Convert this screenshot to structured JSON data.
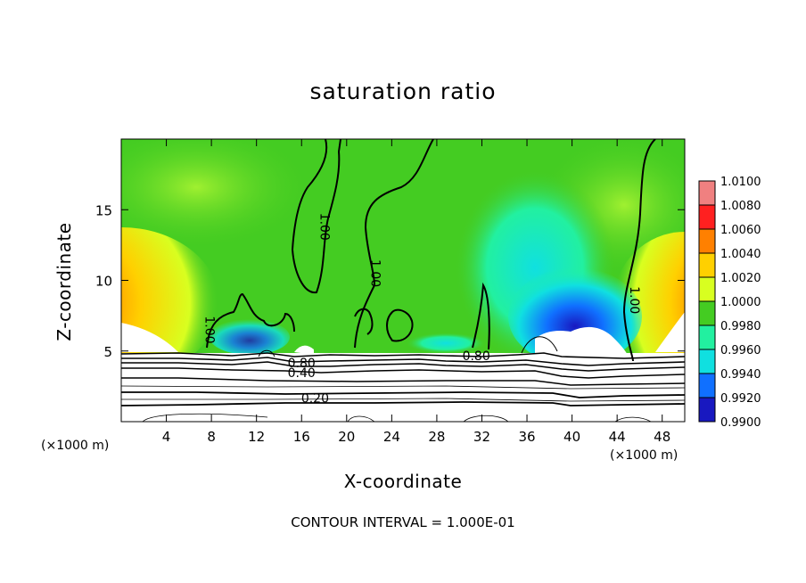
{
  "chart_data": {
    "type": "heatmap",
    "title": "saturation ratio",
    "xlabel": "X-coordinate",
    "ylabel": "Z-coordinate",
    "x_unit_left": "(×1000 m)",
    "x_unit_right": "(×1000 m)",
    "footer": "CONTOUR INTERVAL = 1.000E-01",
    "xlim": [
      0,
      50
    ],
    "ylim": [
      0,
      20
    ],
    "x_ticks": [
      "4",
      "8",
      "12",
      "16",
      "20",
      "24",
      "28",
      "32",
      "36",
      "40",
      "44",
      "48"
    ],
    "y_ticks": [
      "5",
      "10",
      "15"
    ],
    "colorbar": {
      "labels": [
        "1.0100",
        "1.0080",
        "1.0060",
        "1.0040",
        "1.0020",
        "1.0000",
        "0.9980",
        "0.9960",
        "0.9940",
        "0.9920",
        "0.9900"
      ],
      "range": [
        0.99,
        1.01
      ],
      "colors": [
        "#f08080",
        "#ff2020",
        "#ff8000",
        "#ffd000",
        "#d8ff20",
        "#44cc22",
        "#22f0a0",
        "#10e0e0",
        "#1070ff",
        "#1818c0",
        "#6a20a0"
      ]
    },
    "contour_labels": [
      {
        "text": "1.00",
        "x": 18.0,
        "z": 13.8
      },
      {
        "text": "1.00",
        "x": 22.5,
        "z": 10.5
      },
      {
        "text": "1.00",
        "x": 7.8,
        "z": 6.5
      },
      {
        "text": "1.00",
        "x": 45.5,
        "z": 8.6
      },
      {
        "text": "0.80",
        "x": 16.0,
        "z": 4.1
      },
      {
        "text": "0.80",
        "x": 31.5,
        "z": 4.6
      },
      {
        "text": "0.40",
        "x": 16.0,
        "z": 3.4
      },
      {
        "text": "0.20",
        "x": 17.2,
        "z": 1.6
      }
    ],
    "grid": false,
    "legend": "colorbar right"
  }
}
